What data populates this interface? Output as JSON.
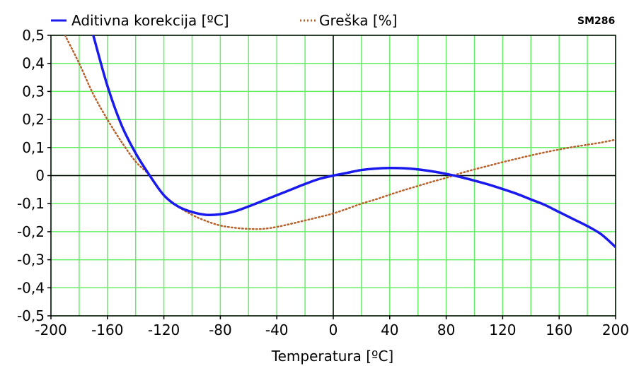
{
  "chart_data": {
    "type": "line",
    "tag": "SM286",
    "xlabel": "Temperatura [ºC]",
    "xlim": [
      -200,
      200
    ],
    "ylim": [
      -0.5,
      0.5
    ],
    "grid": true,
    "legend_position": "top",
    "x_ticks": [
      -200,
      -160,
      -120,
      -80,
      -40,
      0,
      40,
      80,
      120,
      160,
      200
    ],
    "x_tick_labels": [
      "-200",
      "-160",
      "-120",
      "-80",
      "-40",
      "0",
      "40",
      "80",
      "120",
      "160",
      "200"
    ],
    "y_ticks": [
      -0.5,
      -0.4,
      -0.3,
      -0.2,
      -0.1,
      0,
      0.1,
      0.2,
      0.3,
      0.4,
      0.5
    ],
    "y_tick_labels": [
      "-0,5",
      "-0,4",
      "-0,3",
      "-0,2",
      "-0,1",
      "0",
      "0,1",
      "0,2",
      "0,3",
      "0,4",
      "0,5"
    ],
    "colors": {
      "grid": "#66ee66",
      "zero_axis": "#000000",
      "frame": "#000000"
    },
    "series": [
      {
        "name": "Aditivna korekcija [ºC]",
        "color": "#1a1aee",
        "style": "solid",
        "x": [
          -170,
          -160,
          -150,
          -140,
          -130,
          -120,
          -110,
          -100,
          -90,
          -80,
          -70,
          -60,
          -50,
          -40,
          -30,
          -20,
          -10,
          0,
          10,
          20,
          30,
          40,
          50,
          60,
          70,
          80,
          90,
          100,
          110,
          120,
          130,
          140,
          150,
          160,
          170,
          180,
          190,
          200
        ],
        "values": [
          0.5,
          0.32,
          0.18,
          0.08,
          0.0,
          -0.07,
          -0.11,
          -0.13,
          -0.14,
          -0.138,
          -0.128,
          -0.11,
          -0.09,
          -0.07,
          -0.05,
          -0.03,
          -0.012,
          0.0,
          0.01,
          0.02,
          0.025,
          0.027,
          0.026,
          0.022,
          0.015,
          0.006,
          -0.005,
          -0.018,
          -0.032,
          -0.048,
          -0.065,
          -0.085,
          -0.105,
          -0.13,
          -0.155,
          -0.18,
          -0.21,
          -0.255
        ]
      },
      {
        "name": "Greška [%]",
        "color": "#b8602a",
        "style": "dotted",
        "x": [
          -190,
          -180,
          -170,
          -160,
          -150,
          -140,
          -130,
          -120,
          -110,
          -100,
          -90,
          -80,
          -70,
          -60,
          -50,
          -40,
          -30,
          -20,
          -10,
          0,
          10,
          20,
          30,
          40,
          50,
          60,
          70,
          80,
          90,
          100,
          110,
          120,
          130,
          140,
          150,
          160,
          170,
          180,
          190,
          200
        ],
        "values": [
          0.5,
          0.4,
          0.29,
          0.2,
          0.12,
          0.05,
          0.0,
          -0.07,
          -0.11,
          -0.14,
          -0.162,
          -0.178,
          -0.186,
          -0.19,
          -0.19,
          -0.183,
          -0.172,
          -0.16,
          -0.148,
          -0.135,
          -0.118,
          -0.1,
          -0.085,
          -0.068,
          -0.052,
          -0.037,
          -0.022,
          -0.008,
          0.008,
          0.022,
          0.035,
          0.048,
          0.06,
          0.072,
          0.083,
          0.093,
          0.102,
          0.11,
          0.118,
          0.128
        ]
      }
    ]
  }
}
